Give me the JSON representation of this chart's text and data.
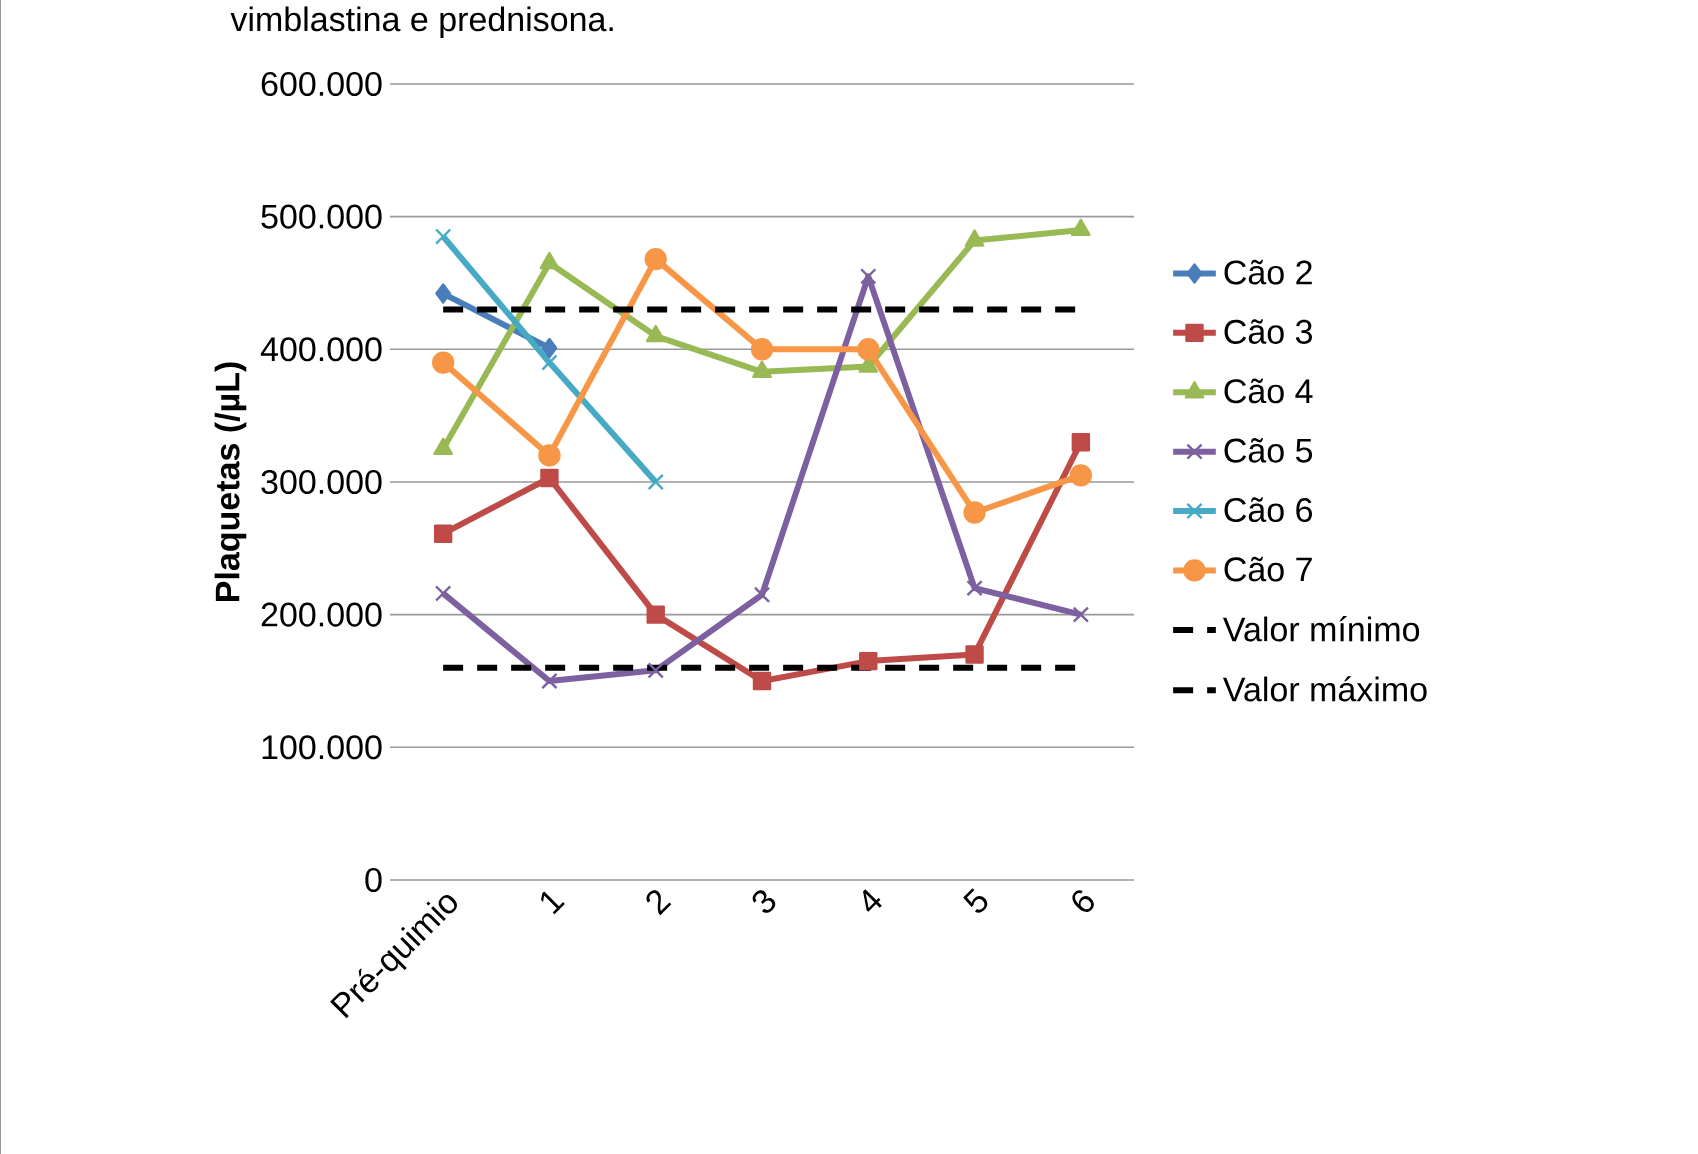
{
  "chart_data": {
    "type": "line",
    "title": "vimblastina e prednisona.",
    "ylabel": "Plaquetas (/µL)",
    "categories": [
      "Pré-quimio",
      "1",
      "2",
      "3",
      "4",
      "5",
      "6"
    ],
    "ylim": [
      0,
      600000
    ],
    "yticks": [
      0,
      {
        "value": 100000,
        "label": "100.000"
      },
      {
        "value": 200000,
        "label": "200.000"
      },
      {
        "value": 300000,
        "label": "300.000"
      },
      {
        "value": 400000,
        "label": "400.000"
      },
      {
        "value": 500000,
        "label": "500.000"
      },
      {
        "value": 600000,
        "label": "600.000"
      }
    ],
    "grid": "y",
    "legend": "right",
    "series": [
      {
        "name": "Cão 2",
        "color": "#4a7ebb",
        "marker": "diamond",
        "values": [
          442000,
          401000,
          null,
          null,
          null,
          null,
          null
        ]
      },
      {
        "name": "Cão 3",
        "color": "#be4b48",
        "marker": "square",
        "values": [
          261000,
          303000,
          200000,
          150000,
          165000,
          170000,
          330000
        ]
      },
      {
        "name": "Cão 4",
        "color": "#98b954",
        "marker": "triangle",
        "values": [
          325000,
          465000,
          410000,
          383000,
          387000,
          482000,
          490000
        ]
      },
      {
        "name": "Cão 5",
        "color": "#7d60a0",
        "marker": "cross",
        "values": [
          216000,
          150000,
          158000,
          215000,
          455000,
          220000,
          200000
        ]
      },
      {
        "name": "Cão 6",
        "color": "#46aac5",
        "marker": "cross",
        "values": [
          485000,
          390000,
          300000,
          null,
          null,
          null,
          null
        ]
      },
      {
        "name": "Cão 7",
        "color": "#f79646",
        "marker": "circle",
        "values": [
          390000,
          320000,
          468000,
          400000,
          400000,
          277000,
          305000
        ]
      },
      {
        "name": "Valor mínimo",
        "color": "#000000",
        "marker": "none",
        "line_style": "dashed",
        "values": [
          160000,
          160000,
          160000,
          160000,
          160000,
          160000,
          160000
        ]
      },
      {
        "name": "Valor máximo",
        "color": "#000000",
        "marker": "none",
        "line_style": "dashed",
        "values": [
          430000,
          430000,
          430000,
          430000,
          430000,
          430000,
          430000
        ]
      }
    ]
  }
}
